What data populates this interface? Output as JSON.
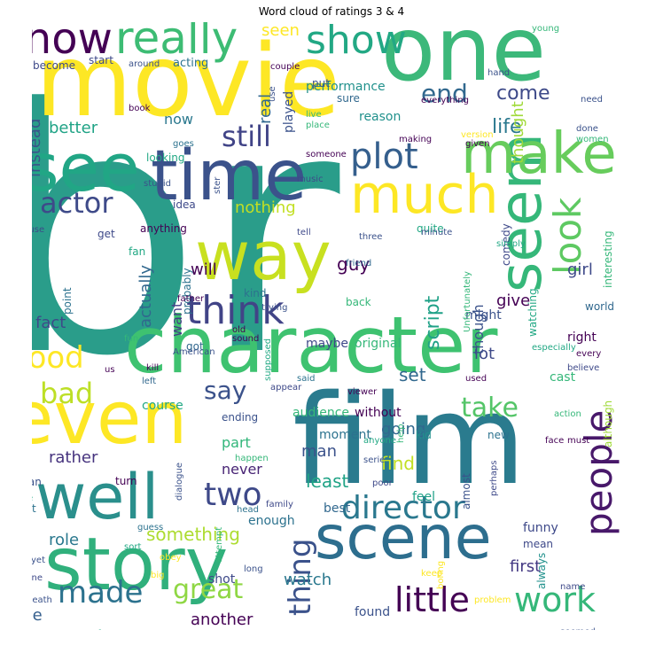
{
  "chart_data": {
    "type": "wordcloud",
    "title": "Word cloud of ratings 3 & 4",
    "words": [
      {
        "text": "br",
        "w": 100,
        "color": "#2a9d8a"
      },
      {
        "text": "film",
        "w": 80,
        "color": "#2a7b8e"
      },
      {
        "text": "movie",
        "w": 72,
        "color": "#fde725"
      },
      {
        "text": "one",
        "w": 70,
        "color": "#3cb87a"
      },
      {
        "text": "character",
        "w": 60,
        "color": "#3ec270"
      },
      {
        "text": "even",
        "w": 56,
        "color": "#fde725"
      },
      {
        "text": "story",
        "w": 56,
        "color": "#30b07c"
      },
      {
        "text": "time",
        "w": 52,
        "color": "#3b528b"
      },
      {
        "text": "way",
        "w": 50,
        "color": "#c8e020"
      },
      {
        "text": "see",
        "w": 50,
        "color": "#21a685"
      },
      {
        "text": "well",
        "w": 48,
        "color": "#2a8f8c"
      },
      {
        "text": "scene",
        "w": 46,
        "color": "#2d6e8e"
      },
      {
        "text": "seem",
        "w": 46,
        "color": "#35b779"
      },
      {
        "text": "make",
        "w": 44,
        "color": "#67cc5c"
      },
      {
        "text": "much",
        "w": 40,
        "color": "#fde725"
      },
      {
        "text": "really",
        "w": 34,
        "color": "#3dbc74"
      },
      {
        "text": "know",
        "w": 32,
        "color": "#440154"
      },
      {
        "text": "show",
        "w": 32,
        "color": "#22a884"
      },
      {
        "text": "think",
        "w": 30,
        "color": "#414487"
      },
      {
        "text": "look",
        "w": 30,
        "color": "#5ec962"
      },
      {
        "text": "people",
        "w": 30,
        "color": "#48186a"
      },
      {
        "text": "plot",
        "w": 28,
        "color": "#355f8d"
      },
      {
        "text": "director",
        "w": 26,
        "color": "#2a788e"
      },
      {
        "text": "little",
        "w": 26,
        "color": "#440154"
      },
      {
        "text": "two",
        "w": 26,
        "color": "#3e4989"
      },
      {
        "text": "good",
        "w": 24,
        "color": "#fde725"
      },
      {
        "text": "made",
        "w": 24,
        "color": "#2c728e"
      },
      {
        "text": "thing",
        "w": 24,
        "color": "#3b528b"
      },
      {
        "text": "work",
        "w": 24,
        "color": "#35b779"
      },
      {
        "text": "actor",
        "w": 22,
        "color": "#3e4a89"
      },
      {
        "text": "bad",
        "w": 22,
        "color": "#bddf26"
      },
      {
        "text": "great",
        "w": 22,
        "color": "#8fd744"
      },
      {
        "text": "play",
        "w": 22,
        "color": "#2a9d8a"
      },
      {
        "text": "still",
        "w": 22,
        "color": "#414487"
      },
      {
        "text": "take",
        "w": 20,
        "color": "#54c568"
      },
      {
        "text": "end",
        "w": 20,
        "color": "#31688e"
      },
      {
        "text": "say",
        "w": 18,
        "color": "#3b528b"
      },
      {
        "text": "come",
        "w": 16,
        "color": "#3e4a89"
      },
      {
        "text": "nothing",
        "w": 14,
        "color": "#c2df23"
      },
      {
        "text": "life",
        "w": 14,
        "color": "#2a788e"
      },
      {
        "text": "script",
        "w": 14,
        "color": "#1fa187"
      },
      {
        "text": "something",
        "w": 14,
        "color": "#addc30"
      },
      {
        "text": "seen",
        "w": 13,
        "color": "#fde725"
      },
      {
        "text": "find",
        "w": 13,
        "color": "#c2df23"
      },
      {
        "text": "set",
        "w": 13,
        "color": "#31688e"
      },
      {
        "text": "least",
        "w": 13,
        "color": "#20a386"
      },
      {
        "text": "guy",
        "w": 13,
        "color": "#440154"
      },
      {
        "text": "fact",
        "w": 13,
        "color": "#3e4989"
      },
      {
        "text": "lot",
        "w": 13,
        "color": "#3e4989"
      },
      {
        "text": "watch",
        "w": 12,
        "color": "#2a788e"
      },
      {
        "text": "another",
        "w": 12,
        "color": "#440154"
      },
      {
        "text": "girl",
        "w": 12,
        "color": "#3e4989"
      },
      {
        "text": "give",
        "w": 12,
        "color": "#440154"
      },
      {
        "text": "first",
        "w": 12,
        "color": "#443983"
      },
      {
        "text": "love",
        "w": 12,
        "color": "#355f8d"
      },
      {
        "text": "role",
        "w": 12,
        "color": "#2a788e"
      },
      {
        "text": "rather",
        "w": 12,
        "color": "#46337e"
      },
      {
        "text": "will",
        "w": 12,
        "color": "#440154"
      },
      {
        "text": "thought",
        "w": 12,
        "color": "#a0da39"
      },
      {
        "text": "going",
        "w": 12,
        "color": "#31688e"
      },
      {
        "text": "man",
        "w": 12,
        "color": "#3b528b"
      },
      {
        "text": "instead",
        "w": 11,
        "color": "#3b528b"
      },
      {
        "text": "better",
        "w": 11,
        "color": "#20a386"
      },
      {
        "text": "actually",
        "w": 11,
        "color": "#31688e"
      },
      {
        "text": "want",
        "w": 11,
        "color": "#433e85"
      },
      {
        "text": "real",
        "w": 11,
        "color": "#31688e"
      },
      {
        "text": "though",
        "w": 11,
        "color": "#3b528b"
      },
      {
        "text": "now",
        "w": 11,
        "color": "#2a788e"
      },
      {
        "text": "part",
        "w": 11,
        "color": "#32b67a"
      },
      {
        "text": "never",
        "w": 11,
        "color": "#482475"
      },
      {
        "text": "many",
        "w": 10,
        "color": "#3b528b"
      },
      {
        "text": "feel",
        "w": 10,
        "color": "#1fa187"
      },
      {
        "text": "either",
        "w": 10,
        "color": "#2a788e"
      },
      {
        "text": "ending",
        "w": 10,
        "color": "#3b528b"
      },
      {
        "text": "audience",
        "w": 10,
        "color": "#35b779"
      },
      {
        "text": "original",
        "w": 10,
        "color": "#35b779"
      },
      {
        "text": "maybe",
        "w": 10,
        "color": "#3e4989"
      },
      {
        "text": "performance",
        "w": 10,
        "color": "#21918c"
      },
      {
        "text": "played",
        "w": 10,
        "color": "#3b528b"
      },
      {
        "text": "course",
        "w": 10,
        "color": "#22a884"
      },
      {
        "text": "moment",
        "w": 10,
        "color": "#2c728e"
      },
      {
        "text": "enough",
        "w": 10,
        "color": "#2c728e"
      },
      {
        "text": "best",
        "w": 10,
        "color": "#31688e"
      },
      {
        "text": "without",
        "w": 10,
        "color": "#440154"
      },
      {
        "text": "found",
        "w": 10,
        "color": "#3b528b"
      },
      {
        "text": "shot",
        "w": 10,
        "color": "#3e4989"
      },
      {
        "text": "funny",
        "w": 10,
        "color": "#3e4989"
      },
      {
        "text": "might",
        "w": 10,
        "color": "#3b528b"
      },
      {
        "text": "right",
        "w": 10,
        "color": "#440154"
      },
      {
        "text": "cast",
        "w": 10,
        "color": "#35b779"
      },
      {
        "text": "reason",
        "w": 10,
        "color": "#21918c"
      },
      {
        "text": "acting",
        "w": 10,
        "color": "#2c728e"
      },
      {
        "text": "start",
        "w": 9,
        "color": "#3e4989"
      },
      {
        "text": "become",
        "w": 9,
        "color": "#3e4989"
      },
      {
        "text": "looking",
        "w": 9,
        "color": "#22a884"
      },
      {
        "text": "anything",
        "w": 9,
        "color": "#440154"
      },
      {
        "text": "point",
        "w": 9,
        "color": "#2c728e"
      },
      {
        "text": "probably",
        "w": 9,
        "color": "#2c728e"
      },
      {
        "text": "back",
        "w": 9,
        "color": "#35b779"
      },
      {
        "text": "quite",
        "w": 9,
        "color": "#22a884"
      },
      {
        "text": "kid",
        "w": 9,
        "color": "#21918c"
      },
      {
        "text": "woman",
        "w": 9,
        "color": "#3b528b"
      },
      {
        "text": "turn",
        "w": 9,
        "color": "#440154"
      },
      {
        "text": "bit",
        "w": 9,
        "color": "#2c728e"
      },
      {
        "text": "new",
        "w": 9,
        "color": "#2c728e"
      },
      {
        "text": "idea",
        "w": 9,
        "color": "#3e4989"
      },
      {
        "text": "fan",
        "w": 9,
        "color": "#22a884"
      },
      {
        "text": "comedy",
        "w": 9,
        "color": "#3e4989"
      },
      {
        "text": "almost",
        "w": 9,
        "color": "#3b528b"
      },
      {
        "text": "watching",
        "w": 9,
        "color": "#22a884"
      },
      {
        "text": "always",
        "w": 9,
        "color": "#21918c"
      },
      {
        "text": "mean",
        "w": 9,
        "color": "#3e4989"
      },
      {
        "text": "sure",
        "w": 9,
        "color": "#31688e"
      },
      {
        "text": "put",
        "w": 9,
        "color": "#3b528b"
      },
      {
        "text": "get",
        "w": 9,
        "color": "#3e4989"
      },
      {
        "text": "got",
        "w": 8,
        "color": "#31688e"
      },
      {
        "text": "may",
        "w": 8,
        "color": "#3e4989"
      },
      {
        "text": "go",
        "w": 8,
        "color": "#b8de29"
      },
      {
        "text": "kind",
        "w": 8,
        "color": "#2c728e"
      },
      {
        "text": "although",
        "w": 8,
        "color": "#a0da39"
      },
      {
        "text": "interesting",
        "w": 8,
        "color": "#35b779"
      },
      {
        "text": "world",
        "w": 8,
        "color": "#31688e"
      },
      {
        "text": "around",
        "w": 7,
        "color": "#3b528b"
      },
      {
        "text": "couple",
        "w": 7,
        "color": "#440154"
      },
      {
        "text": "everything",
        "w": 7,
        "color": "#440154"
      },
      {
        "text": "making",
        "w": 7,
        "color": "#440154"
      },
      {
        "text": "nice",
        "w": 7,
        "color": "#22a884"
      },
      {
        "text": "young",
        "w": 7,
        "color": "#35b779"
      },
      {
        "text": "hand",
        "w": 7,
        "color": "#3b528b"
      },
      {
        "text": "need",
        "w": 7,
        "color": "#3b528b"
      },
      {
        "text": "book",
        "w": 7,
        "color": "#440154"
      },
      {
        "text": "goes",
        "w": 7,
        "color": "#2c728e"
      },
      {
        "text": "use",
        "w": 7,
        "color": "#3b528b"
      },
      {
        "text": "live",
        "w": 7,
        "color": "#35b779"
      },
      {
        "text": "place",
        "w": 7,
        "color": "#35b779"
      },
      {
        "text": "version",
        "w": 7,
        "color": "#fde725"
      },
      {
        "text": "given",
        "w": 7,
        "color": "#440154"
      },
      {
        "text": "done",
        "w": 7,
        "color": "#3b528b"
      },
      {
        "text": "women",
        "w": 7,
        "color": "#35b779"
      },
      {
        "text": "someone",
        "w": 7,
        "color": "#440154"
      },
      {
        "text": "music",
        "w": 7,
        "color": "#3e4989"
      },
      {
        "text": "stupid",
        "w": 7,
        "color": "#3b528b"
      },
      {
        "text": "completely",
        "w": 7,
        "color": "#22a884"
      },
      {
        "text": "minute",
        "w": 7,
        "color": "#3b528b"
      },
      {
        "text": "three",
        "w": 7,
        "color": "#3b528b"
      },
      {
        "text": "simply",
        "w": 7,
        "color": "#22a884"
      },
      {
        "text": "tell",
        "w": 7,
        "color": "#3e4989"
      },
      {
        "text": "house",
        "w": 7,
        "color": "#3e4989"
      },
      {
        "text": "friend",
        "w": 7,
        "color": "#31688e"
      },
      {
        "text": "trying",
        "w": 7,
        "color": "#3b528b"
      },
      {
        "text": "father",
        "w": 7,
        "color": "#440154"
      },
      {
        "text": "everyone",
        "w": 7,
        "color": "#3b528b"
      },
      {
        "text": "Unfortunately",
        "w": 7,
        "color": "#35b779"
      },
      {
        "text": "especially",
        "w": 7,
        "color": "#22a884"
      },
      {
        "text": "American",
        "w": 7,
        "color": "#3b528b"
      },
      {
        "text": "old",
        "w": 7,
        "color": "#440154"
      },
      {
        "text": "sound",
        "w": 7,
        "color": "#440154"
      },
      {
        "text": "every",
        "w": 7,
        "color": "#440154"
      },
      {
        "text": "believe",
        "w": 7,
        "color": "#3e4989"
      },
      {
        "text": "fun",
        "w": 7,
        "color": "#35b779"
      },
      {
        "text": "us",
        "w": 7,
        "color": "#440154"
      },
      {
        "text": "kill",
        "w": 7,
        "color": "#440154"
      },
      {
        "text": "left",
        "w": 7,
        "color": "#31688e"
      },
      {
        "text": "supposed",
        "w": 7,
        "color": "#22a884"
      },
      {
        "text": "appear",
        "w": 7,
        "color": "#3e4989"
      },
      {
        "text": "said",
        "w": 7,
        "color": "#2c728e"
      },
      {
        "text": "viewer",
        "w": 7,
        "color": "#440154"
      },
      {
        "text": "used",
        "w": 7,
        "color": "#440154"
      },
      {
        "text": "case",
        "w": 7,
        "color": "#35b779"
      },
      {
        "text": "anyone",
        "w": 7,
        "color": "#22a884"
      },
      {
        "text": "help",
        "w": 7,
        "color": "#35b779"
      },
      {
        "text": "action",
        "w": 7,
        "color": "#35b779"
      },
      {
        "text": "face",
        "w": 7,
        "color": "#440154"
      },
      {
        "text": "must",
        "w": 7,
        "color": "#440154"
      },
      {
        "text": "happen",
        "w": 7,
        "color": "#35b779"
      },
      {
        "text": "leave",
        "w": 7,
        "color": "#22a884"
      },
      {
        "text": "head",
        "w": 7,
        "color": "#2c728e"
      },
      {
        "text": "family",
        "w": 7,
        "color": "#3e4989"
      },
      {
        "text": "serie",
        "w": 7,
        "color": "#3b528b"
      },
      {
        "text": "poor",
        "w": 7,
        "color": "#3e4989"
      },
      {
        "text": "perhaps",
        "w": 7,
        "color": "#3e4989"
      },
      {
        "text": "guess",
        "w": 7,
        "color": "#2c728e"
      },
      {
        "text": "dialogue",
        "w": 7,
        "color": "#3b528b"
      },
      {
        "text": "sort",
        "w": 7,
        "color": "#22a884"
      },
      {
        "text": "yet",
        "w": 7,
        "color": "#3b528b"
      },
      {
        "text": "obey",
        "w": 7,
        "color": "#fde725"
      },
      {
        "text": "line",
        "w": 7,
        "color": "#3e4989"
      },
      {
        "text": "big",
        "w": 7,
        "color": "#fde725"
      },
      {
        "text": "attempt",
        "w": 7,
        "color": "#35b779"
      },
      {
        "text": "long",
        "w": 7,
        "color": "#3b528b"
      },
      {
        "text": "keep",
        "w": 7,
        "color": "#fde725"
      },
      {
        "text": "boring",
        "w": 7,
        "color": "#fde725"
      },
      {
        "text": "problem",
        "w": 7,
        "color": "#fde725"
      },
      {
        "text": "name",
        "w": 7,
        "color": "#3e4989"
      },
      {
        "text": "death",
        "w": 7,
        "color": "#3b528b"
      },
      {
        "text": "far",
        "w": 7,
        "color": "#22a884"
      },
      {
        "text": "screen",
        "w": 7,
        "color": "#fde725"
      },
      {
        "text": "wife",
        "w": 7,
        "color": "#3b528b"
      },
      {
        "text": "seemed",
        "w": 7,
        "color": "#3b528b"
      },
      {
        "text": "ster",
        "w": 7,
        "color": "#3b528b"
      }
    ]
  }
}
